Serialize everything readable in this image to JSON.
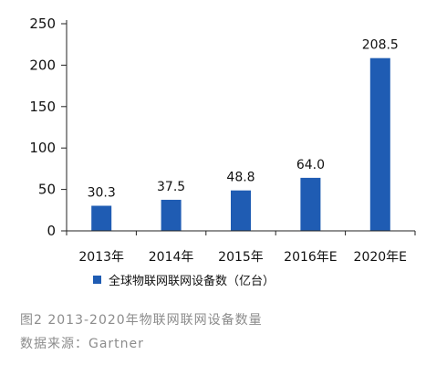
{
  "chart_data": {
    "type": "bar",
    "categories": [
      "2013年",
      "2014年",
      "2015年",
      "2016年E",
      "2020年E"
    ],
    "series": [
      {
        "name": "全球物联网联网设备数（亿台）",
        "values": [
          30.3,
          37.5,
          48.8,
          64.0,
          208.5
        ],
        "labels": [
          "30.3",
          "37.5",
          "48.8",
          "64.0",
          "208.5"
        ]
      }
    ],
    "ylim": [
      0,
      250
    ],
    "yticks": [
      0,
      50,
      100,
      150,
      200,
      250
    ],
    "grid": false,
    "legend_position": "bottom",
    "bar_color": "#1f5cb3",
    "axis_color": "#222222"
  },
  "caption": {
    "title": "图2  2013-2020年物联网联网设备数量",
    "source": "数据来源：Gartner"
  }
}
